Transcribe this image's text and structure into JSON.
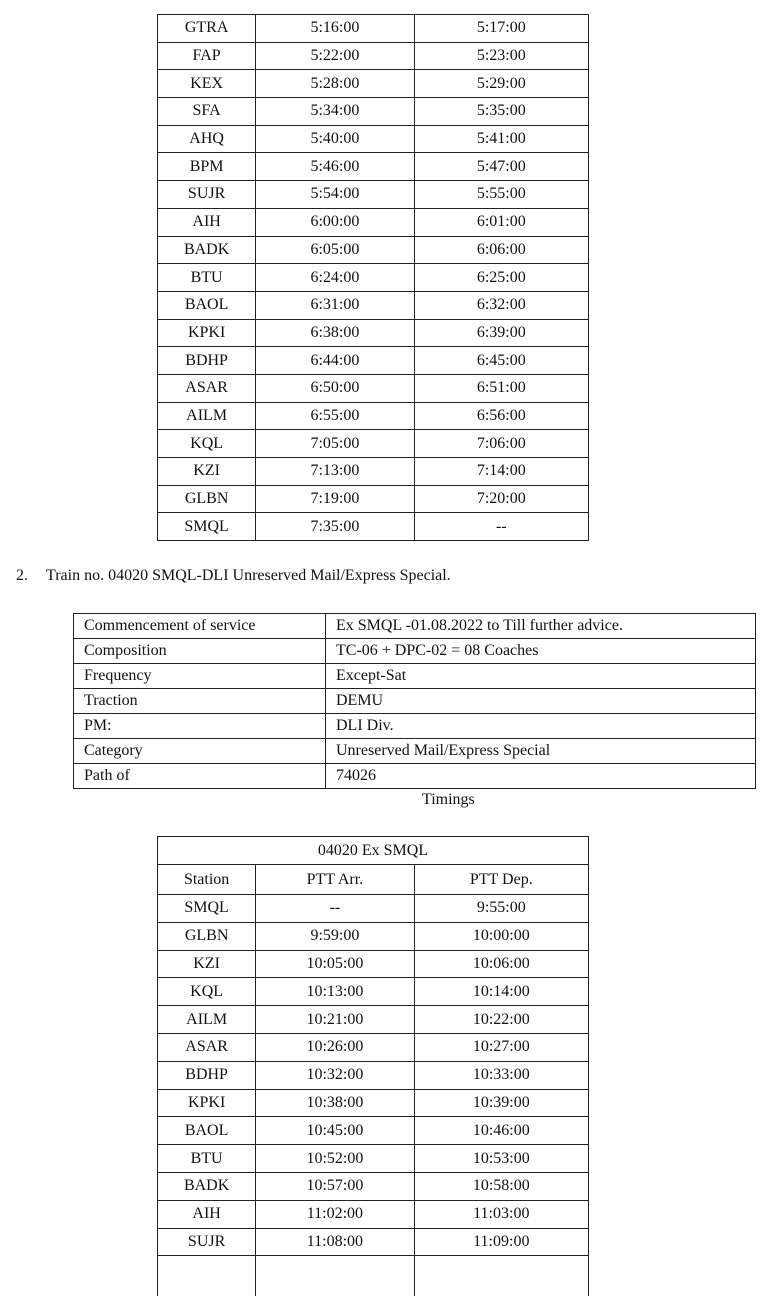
{
  "table1": {
    "rows": [
      [
        "GTRA",
        "5:16:00",
        "5:17:00"
      ],
      [
        "FAP",
        "5:22:00",
        "5:23:00"
      ],
      [
        "KEX",
        "5:28:00",
        "5:29:00"
      ],
      [
        "SFA",
        "5:34:00",
        "5:35:00"
      ],
      [
        "AHQ",
        "5:40:00",
        "5:41:00"
      ],
      [
        "BPM",
        "5:46:00",
        "5:47:00"
      ],
      [
        "SUJR",
        "5:54:00",
        "5:55:00"
      ],
      [
        "AIH",
        "6:00:00",
        "6:01:00"
      ],
      [
        "BADK",
        "6:05:00",
        "6:06:00"
      ],
      [
        "BTU",
        "6:24:00",
        "6:25:00"
      ],
      [
        "BAOL",
        "6:31:00",
        "6:32:00"
      ],
      [
        "KPKI",
        "6:38:00",
        "6:39:00"
      ],
      [
        "BDHP",
        "6:44:00",
        "6:45:00"
      ],
      [
        "ASAR",
        "6:50:00",
        "6:51:00"
      ],
      [
        "AILM",
        "6:55:00",
        "6:56:00"
      ],
      [
        "KQL",
        "7:05:00",
        "7:06:00"
      ],
      [
        "KZI",
        "7:13:00",
        "7:14:00"
      ],
      [
        "GLBN",
        "7:19:00",
        "7:20:00"
      ],
      [
        "SMQL",
        "7:35:00",
        "--"
      ]
    ]
  },
  "item2": {
    "number": "2.",
    "text": "Train no. 04020 SMQL-DLI Unreserved Mail/Express Special."
  },
  "info": {
    "rows": [
      [
        "Commencement of service",
        "Ex SMQL -01.08.2022 to Till further advice."
      ],
      [
        "Composition",
        "TC-06 + DPC-02 = 08 Coaches"
      ],
      [
        "Frequency",
        "Except-Sat"
      ],
      [
        "Traction",
        "DEMU"
      ],
      [
        "PM:",
        "DLI Div."
      ],
      [
        "Category",
        "Unreserved Mail/Express Special"
      ],
      [
        "Path of",
        "74026"
      ]
    ]
  },
  "timings_label": "Timings",
  "table2": {
    "title": "04020 Ex SMQL",
    "headers": [
      "Station",
      "PTT Arr.",
      "PTT Dep."
    ],
    "rows": [
      [
        "SMQL",
        "--",
        "9:55:00"
      ],
      [
        "GLBN",
        "9:59:00",
        "10:00:00"
      ],
      [
        "KZI",
        "10:05:00",
        "10:06:00"
      ],
      [
        "KQL",
        "10:13:00",
        "10:14:00"
      ],
      [
        "AILM",
        "10:21:00",
        "10:22:00"
      ],
      [
        "ASAR",
        "10:26:00",
        "10:27:00"
      ],
      [
        "BDHP",
        "10:32:00",
        "10:33:00"
      ],
      [
        "KPKI",
        "10:38:00",
        "10:39:00"
      ],
      [
        "BAOL",
        "10:45:00",
        "10:46:00"
      ],
      [
        "BTU",
        "10:52:00",
        "10:53:00"
      ],
      [
        "BADK",
        "10:57:00",
        "10:58:00"
      ],
      [
        "AIH",
        "11:02:00",
        "11:03:00"
      ],
      [
        "SUJR",
        "11:08:00",
        "11:09:00"
      ]
    ]
  }
}
